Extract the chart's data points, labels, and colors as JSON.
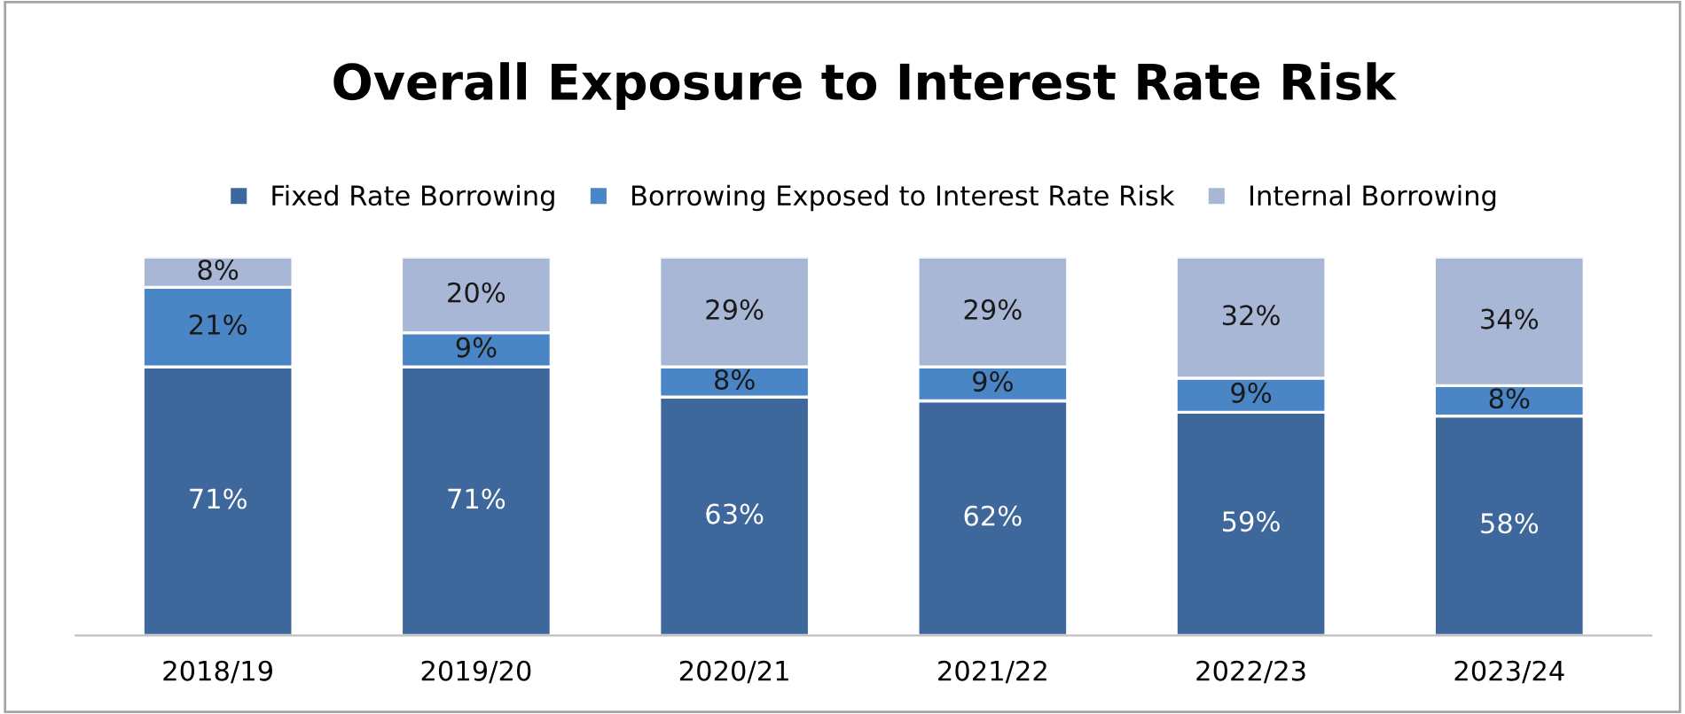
{
  "chart_data": {
    "type": "bar",
    "stacked": true,
    "title": "Overall Exposure to Interest Rate Risk",
    "categories": [
      "2018/19",
      "2019/20",
      "2020/21",
      "2021/22",
      "2022/23",
      "2023/24"
    ],
    "series": [
      {
        "name": "Fixed Rate Borrowing",
        "color": "#3e689c",
        "values": [
          71,
          71,
          63,
          62,
          59,
          58
        ],
        "value_labels": [
          "71%",
          "71%",
          "63%",
          "62%",
          "59%",
          "58%"
        ]
      },
      {
        "name": "Borrowing Exposed to Interest Rate Risk",
        "color": "#4a85c6",
        "values": [
          21,
          9,
          8,
          9,
          9,
          8
        ],
        "value_labels": [
          "21%",
          "9%",
          "8%",
          "9%",
          "9%",
          "8%"
        ]
      },
      {
        "name": "Internal Borrowing",
        "color": "#a9b7d7",
        "values": [
          8,
          20,
          29,
          29,
          32,
          34
        ],
        "value_labels": [
          "8%",
          "20%",
          "29%",
          "29%",
          "32%",
          "34%"
        ]
      }
    ],
    "legend": "top",
    "grid": false,
    "tick_labels": "x"
  }
}
